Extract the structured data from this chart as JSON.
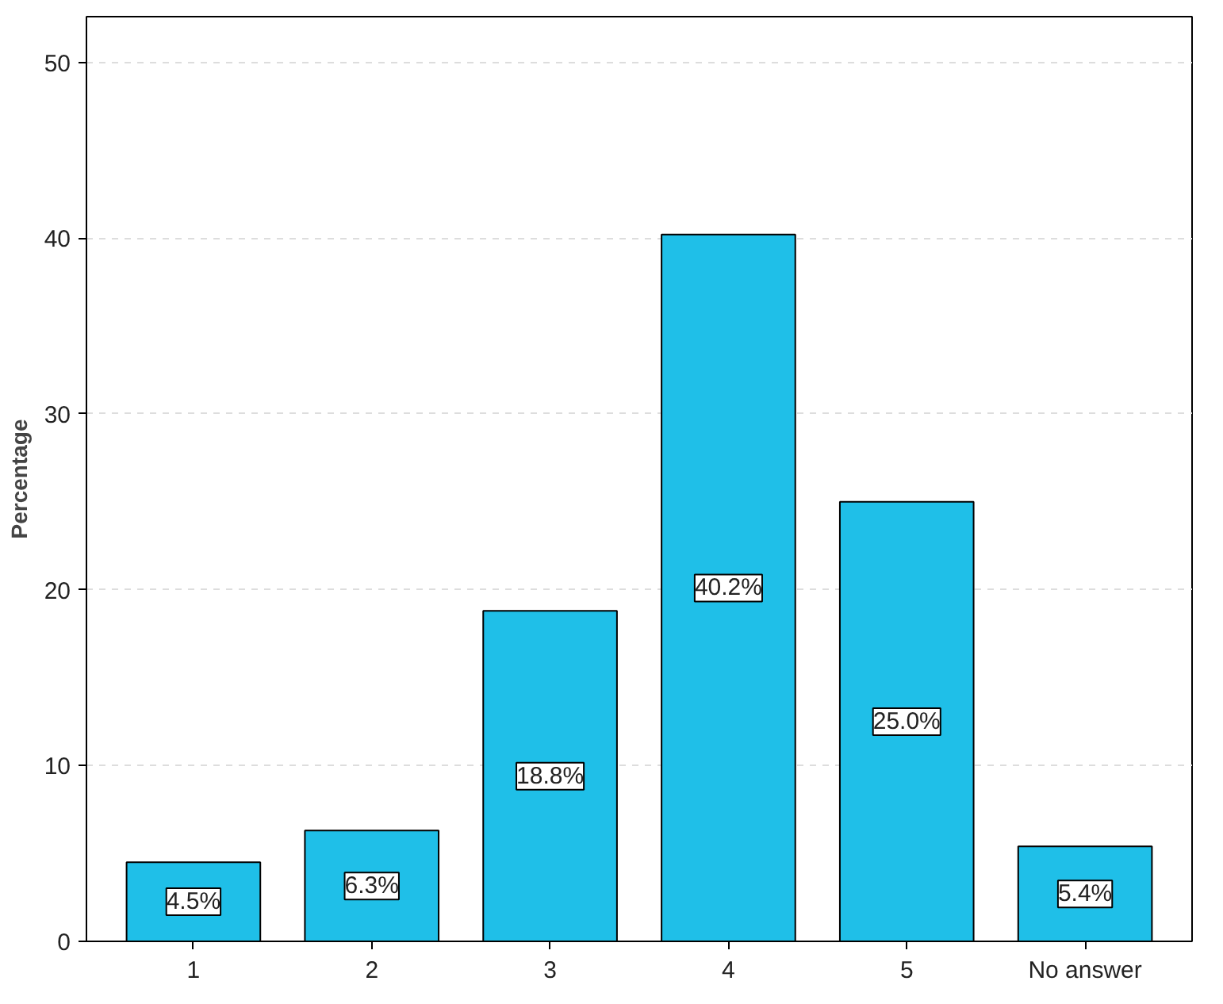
{
  "chart_data": {
    "type": "bar",
    "ylabel": "Percentage",
    "categories": [
      "1",
      "2",
      "3",
      "4",
      "5",
      "No answer"
    ],
    "values": [
      4.5,
      6.3,
      18.8,
      40.2,
      25.0,
      5.4
    ],
    "value_labels": [
      "4.5%",
      "6.3%",
      "18.8%",
      "40.2%",
      "25.0%",
      "5.4%"
    ],
    "color": "#1fbfe8",
    "ylim": [
      0,
      52.6
    ],
    "yticks": [
      0,
      10,
      20,
      30,
      40,
      50
    ],
    "grid": "y"
  }
}
